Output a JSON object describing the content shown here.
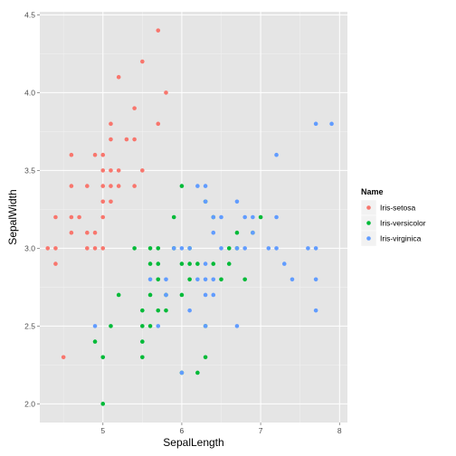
{
  "chart_data": {
    "type": "scatter",
    "xlabel": "SepalLength",
    "ylabel": "SepalWidth",
    "xlim": [
      4.2,
      8.1
    ],
    "ylim": [
      1.88,
      4.52
    ],
    "xticks": [
      5,
      6,
      7,
      8
    ],
    "yticks": [
      2.0,
      2.5,
      3.0,
      3.5,
      4.0,
      4.5
    ],
    "ytick_labels": [
      "2.0",
      "2.5",
      "3.0",
      "3.5",
      "4.0",
      "4.5"
    ],
    "grid": true,
    "legend": {
      "title": "Name",
      "position": "right"
    },
    "series": [
      {
        "name": "Iris-setosa",
        "color": "#f8766d",
        "points": [
          [
            4.3,
            3.0
          ],
          [
            4.4,
            2.9
          ],
          [
            4.4,
            3.0
          ],
          [
            4.4,
            3.2
          ],
          [
            4.5,
            2.3
          ],
          [
            4.6,
            3.1
          ],
          [
            4.6,
            3.2
          ],
          [
            4.6,
            3.4
          ],
          [
            4.6,
            3.6
          ],
          [
            4.7,
            3.2
          ],
          [
            4.8,
            3.0
          ],
          [
            4.8,
            3.1
          ],
          [
            4.8,
            3.4
          ],
          [
            4.9,
            3.0
          ],
          [
            4.9,
            3.1
          ],
          [
            4.9,
            3.6
          ],
          [
            5.0,
            3.0
          ],
          [
            5.0,
            3.2
          ],
          [
            5.0,
            3.3
          ],
          [
            5.0,
            3.4
          ],
          [
            5.0,
            3.5
          ],
          [
            5.0,
            3.6
          ],
          [
            5.1,
            3.3
          ],
          [
            5.1,
            3.4
          ],
          [
            5.1,
            3.5
          ],
          [
            5.1,
            3.7
          ],
          [
            5.1,
            3.8
          ],
          [
            5.2,
            3.4
          ],
          [
            5.2,
            3.5
          ],
          [
            5.2,
            4.1
          ],
          [
            5.3,
            3.7
          ],
          [
            5.4,
            3.4
          ],
          [
            5.4,
            3.7
          ],
          [
            5.4,
            3.9
          ],
          [
            5.5,
            3.5
          ],
          [
            5.5,
            4.2
          ],
          [
            5.7,
            3.8
          ],
          [
            5.7,
            4.4
          ],
          [
            5.8,
            4.0
          ]
        ]
      },
      {
        "name": "Iris-versicolor",
        "color": "#00ba38",
        "points": [
          [
            4.9,
            2.4
          ],
          [
            5.0,
            2.0
          ],
          [
            5.0,
            2.3
          ],
          [
            5.1,
            2.5
          ],
          [
            5.2,
            2.7
          ],
          [
            5.4,
            3.0
          ],
          [
            5.5,
            2.3
          ],
          [
            5.5,
            2.4
          ],
          [
            5.5,
            2.5
          ],
          [
            5.5,
            2.6
          ],
          [
            5.6,
            2.5
          ],
          [
            5.6,
            2.7
          ],
          [
            5.6,
            2.9
          ],
          [
            5.6,
            3.0
          ],
          [
            5.7,
            2.6
          ],
          [
            5.7,
            2.8
          ],
          [
            5.7,
            2.9
          ],
          [
            5.7,
            3.0
          ],
          [
            5.8,
            2.6
          ],
          [
            5.8,
            2.7
          ],
          [
            5.9,
            3.0
          ],
          [
            5.9,
            3.2
          ],
          [
            6.0,
            2.2
          ],
          [
            6.0,
            2.7
          ],
          [
            6.0,
            2.9
          ],
          [
            6.0,
            3.4
          ],
          [
            6.1,
            2.8
          ],
          [
            6.1,
            2.9
          ],
          [
            6.1,
            3.0
          ],
          [
            6.2,
            2.2
          ],
          [
            6.2,
            2.9
          ],
          [
            6.3,
            2.3
          ],
          [
            6.3,
            2.5
          ],
          [
            6.3,
            3.3
          ],
          [
            6.4,
            2.9
          ],
          [
            6.4,
            3.2
          ],
          [
            6.5,
            2.8
          ],
          [
            6.6,
            2.9
          ],
          [
            6.6,
            3.0
          ],
          [
            6.7,
            3.0
          ],
          [
            6.7,
            3.1
          ],
          [
            6.8,
            2.8
          ],
          [
            6.9,
            3.1
          ],
          [
            7.0,
            3.2
          ]
        ]
      },
      {
        "name": "Iris-virginica",
        "color": "#619cff",
        "points": [
          [
            4.9,
            2.5
          ],
          [
            5.6,
            2.8
          ],
          [
            5.7,
            2.5
          ],
          [
            5.8,
            2.7
          ],
          [
            5.8,
            2.8
          ],
          [
            5.9,
            3.0
          ],
          [
            6.0,
            2.2
          ],
          [
            6.0,
            3.0
          ],
          [
            6.1,
            2.6
          ],
          [
            6.1,
            3.0
          ],
          [
            6.2,
            2.8
          ],
          [
            6.2,
            3.4
          ],
          [
            6.3,
            2.5
          ],
          [
            6.3,
            2.7
          ],
          [
            6.3,
            2.8
          ],
          [
            6.3,
            2.9
          ],
          [
            6.3,
            3.3
          ],
          [
            6.3,
            3.4
          ],
          [
            6.4,
            2.7
          ],
          [
            6.4,
            2.8
          ],
          [
            6.4,
            3.1
          ],
          [
            6.4,
            3.2
          ],
          [
            6.5,
            3.0
          ],
          [
            6.5,
            3.2
          ],
          [
            6.7,
            2.5
          ],
          [
            6.7,
            3.0
          ],
          [
            6.7,
            3.3
          ],
          [
            6.8,
            3.0
          ],
          [
            6.8,
            3.2
          ],
          [
            6.9,
            3.1
          ],
          [
            6.9,
            3.2
          ],
          [
            7.1,
            3.0
          ],
          [
            7.2,
            3.0
          ],
          [
            7.2,
            3.2
          ],
          [
            7.2,
            3.6
          ],
          [
            7.3,
            2.9
          ],
          [
            7.4,
            2.8
          ],
          [
            7.6,
            3.0
          ],
          [
            7.7,
            2.6
          ],
          [
            7.7,
            2.8
          ],
          [
            7.7,
            3.0
          ],
          [
            7.7,
            3.8
          ],
          [
            7.9,
            3.8
          ]
        ]
      }
    ]
  }
}
